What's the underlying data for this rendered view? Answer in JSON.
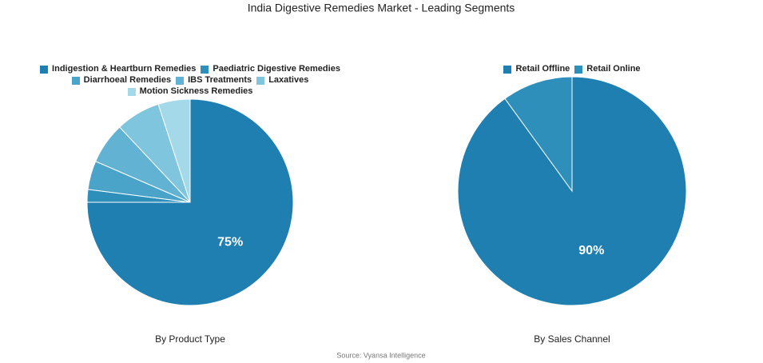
{
  "title": "India Digestive Remedies Market - Leading Segments",
  "source": "Source: Vyansa Intelligence",
  "chart_data": [
    {
      "type": "pie",
      "title": "By Product Type",
      "categories": [
        "Indigestion & Heartburn Remedies",
        "Paediatric Digestive Remedies",
        "Diarrhoeal Remedies",
        "IBS Treatments",
        "Laxatives",
        "Motion Sickness Remedies"
      ],
      "values": [
        75,
        2,
        4.5,
        6.5,
        7,
        5
      ],
      "value_labels": [
        "75%",
        null,
        null,
        null,
        null,
        null
      ],
      "colors": [
        "#1f7fb0",
        "#2e8fbb",
        "#4aa3c8",
        "#62b3d3",
        "#7fc5de",
        "#a3d9e8"
      ]
    },
    {
      "type": "pie",
      "title": "By Sales Channel",
      "categories": [
        "Retail Offline",
        "Retail Online"
      ],
      "values": [
        90,
        10
      ],
      "value_labels": [
        "90%",
        null
      ],
      "colors": [
        "#1f7fb0",
        "#2e8fbb"
      ]
    }
  ]
}
